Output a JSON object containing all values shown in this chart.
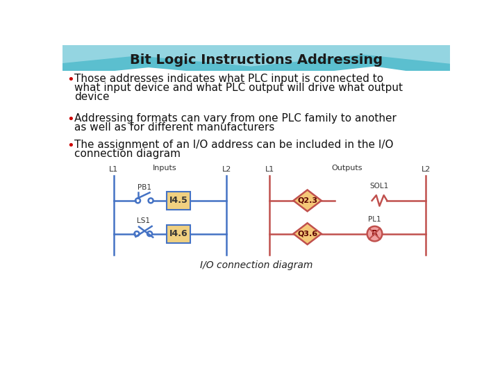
{
  "title": "Bit Logic Instructions Addressing",
  "title_fontsize": 14,
  "bullet_color": "#cc0000",
  "text_color": "#111111",
  "bullet1_l1": "Those addresses indicates what PLC input is connected to",
  "bullet1_l2": "what input device and what PLC output will drive what output",
  "bullet1_l3": "device",
  "bullet2_l1": "Addressing formats can vary from one PLC family to another",
  "bullet2_l2": "as well as for different manufacturers",
  "bullet3_l1": "The assignment of an I/O address can be included in the I/O",
  "bullet3_l2": "connection diagram",
  "diagram_caption": "I/O connection diagram",
  "blue": "#4472c4",
  "red": "#c0504d",
  "box_fill": "#f0d080",
  "box_edge": "#4472c4",
  "teal_dark": "#5bbfcf",
  "teal_light": "#a8dde8",
  "wave_color": "#7dcfdf"
}
